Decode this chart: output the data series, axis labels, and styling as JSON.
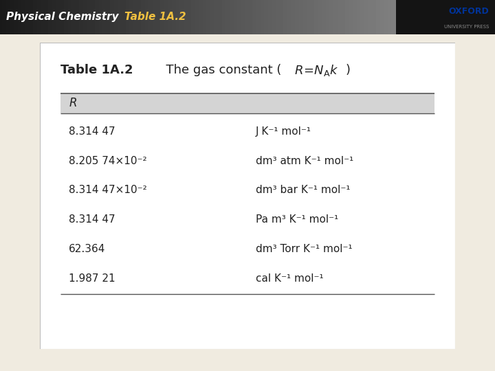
{
  "header_bg": "#2a2a2a",
  "header_text_left": "Physical Chemistry",
  "header_text_right": "Table 1A.2",
  "header_text_color_left": "#ffffff",
  "header_text_color_right": "#f0c040",
  "oxford_color": "#003399",
  "oxford_text1": "OXFORD",
  "oxford_text2": "UNIVERSITY PRESS",
  "col_header": "R",
  "col_header_bg": "#d4d4d4",
  "values": [
    [
      "8.314 47",
      "J K⁻¹ mol⁻¹"
    ],
    [
      "8.205 74×10⁻²",
      "dm³ atm K⁻¹ mol⁻¹"
    ],
    [
      "8.314 47×10⁻²",
      "dm³ bar K⁻¹ mol⁻¹"
    ],
    [
      "8.314 47",
      "Pa m³ K⁻¹ mol⁻¹"
    ],
    [
      "62.364",
      "dm³ Torr K⁻¹ mol⁻¹"
    ],
    [
      "1.987 21",
      "cal K⁻¹ mol⁻¹"
    ]
  ],
  "outer_bg": "#f0ebe0",
  "table_bg": "#ffffff",
  "line_color": "#555555",
  "text_color": "#222222"
}
